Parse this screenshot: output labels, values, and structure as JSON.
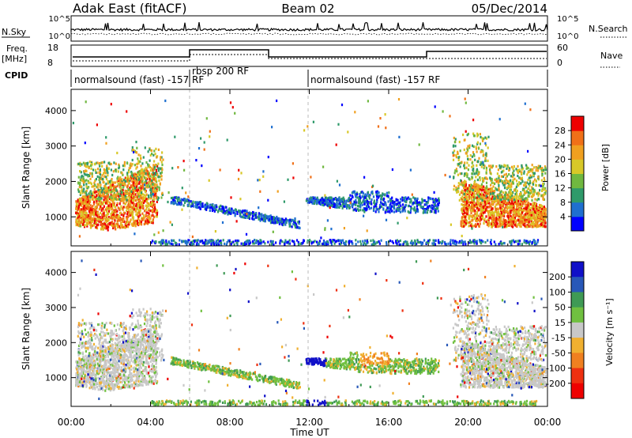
{
  "header": {
    "station": "Adak East (fitACF)",
    "beam": "Beam 02",
    "date": "05/Dec/2014"
  },
  "top_panels": {
    "nsky_label": "N.Sky",
    "nsky_ticks": [
      "10^5",
      "10^0"
    ],
    "nsearch_label": "N.Search",
    "nsearch_ticks": [
      "10^5",
      "10^0"
    ],
    "freq_label": "Freq.",
    "freq_unit": "[MHz]",
    "freq_ticks": [
      "18",
      "8"
    ],
    "nave_label": "Nave",
    "nave_ticks": [
      "60",
      "0"
    ],
    "cpid_label": "CPID",
    "cpid_segments": [
      {
        "text": "normalsound (fast) -157 RF",
        "start": 0,
        "end": 6
      },
      {
        "text": "rbsp 200 RF",
        "start": 6,
        "end": 12
      },
      {
        "text": "normalsound (fast) -157 RF",
        "start": 12,
        "end": 24
      }
    ]
  },
  "chart_data": [
    {
      "type": "heatmap",
      "title": "Power",
      "xlabel": "Time UT",
      "ylabel": "Slant Range [km]",
      "xlim": [
        0,
        24
      ],
      "ylim": [
        180,
        4600
      ],
      "x_ticks": [
        "00:00",
        "04:00",
        "08:00",
        "12:00",
        "16:00",
        "20:00",
        "00:00"
      ],
      "y_ticks": [
        1000,
        2000,
        3000,
        4000
      ],
      "colorbar": {
        "label": "Power [dB]",
        "ticks": [
          "4",
          "8",
          "12",
          "16",
          "20",
          "24",
          "28"
        ],
        "colors": [
          "#0000ff",
          "#1f6fd0",
          "#2f9a6a",
          "#70b840",
          "#d8c828",
          "#f0a020",
          "#f07018",
          "#ee0000"
        ]
      }
    },
    {
      "type": "heatmap",
      "title": "Velocity",
      "xlabel": "Time UT",
      "ylabel": "Slant Range [km]",
      "xlim": [
        0,
        24
      ],
      "ylim": [
        180,
        4600
      ],
      "x_ticks": [
        "00:00",
        "04:00",
        "08:00",
        "12:00",
        "16:00",
        "20:00",
        "00:00"
      ],
      "y_ticks": [
        1000,
        2000,
        3000,
        4000
      ],
      "colorbar": {
        "label": "Velocity [m s⁻¹]",
        "ticks": [
          "200",
          "100",
          "50",
          "15",
          "-15",
          "-50",
          "-100",
          "-200"
        ],
        "colors": [
          "#1010c8",
          "#2858b8",
          "#3f9a55",
          "#70c040",
          "#c8c8c8",
          "#f0b030",
          "#f08020",
          "#ee3010",
          "#ee0000"
        ]
      }
    }
  ]
}
